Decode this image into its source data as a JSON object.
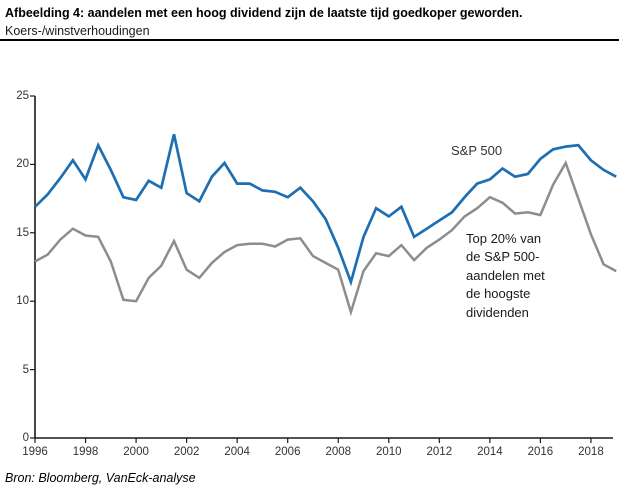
{
  "header": {
    "title": "Afbeelding 4: aandelen met een hoog dividend zijn de laatste tijd goedkoper geworden.",
    "subtitle": "Koers-/winstverhoudingen"
  },
  "footer": {
    "source": "Bron: Bloomberg, VanEck-analyse"
  },
  "colors": {
    "sp500_line": "#1e6fb2",
    "top20_line": "#8d8d8d",
    "axis": "#1a1a1a",
    "tick_label": "#333333"
  },
  "annotations": {
    "sp500_label": "S&P 500",
    "top20_label_lines": [
      "Top 20% van",
      "de S&P 500-",
      "aandelen met",
      "de hoogste",
      "dividenden"
    ]
  },
  "chart_data": {
    "type": "line",
    "title": "Koers-/winstverhoudingen",
    "xlabel": "",
    "ylabel": "",
    "grid": false,
    "legend_position": "inline-annotations",
    "xlim": [
      1996,
      2019
    ],
    "ylim": [
      0,
      25
    ],
    "y_ticks": [
      0,
      5,
      10,
      15,
      20,
      25
    ],
    "x_ticks": [
      1996,
      1998,
      2000,
      2002,
      2004,
      2006,
      2008,
      2010,
      2012,
      2014,
      2016,
      2018
    ],
    "x": [
      1996,
      1996.5,
      1997,
      1997.5,
      1998,
      1998.5,
      1999,
      1999.5,
      2000,
      2000.5,
      2001,
      2001.5,
      2002,
      2002.5,
      2003,
      2003.5,
      2004,
      2004.5,
      2005,
      2005.5,
      2006,
      2006.5,
      2007,
      2007.5,
      2008,
      2008.5,
      2009,
      2009.5,
      2010,
      2010.5,
      2011,
      2011.5,
      2012,
      2012.5,
      2013,
      2013.5,
      2014,
      2014.5,
      2015,
      2015.5,
      2016,
      2016.5,
      2017,
      2017.5,
      2018,
      2018.5,
      2019
    ],
    "series": [
      {
        "name": "S&P 500",
        "color": "#1e6fb2",
        "values": [
          16.9,
          17.8,
          19.0,
          20.3,
          18.9,
          21.4,
          19.6,
          17.6,
          17.4,
          18.8,
          18.3,
          22.2,
          17.9,
          17.3,
          19.1,
          20.1,
          18.6,
          18.6,
          18.1,
          18.0,
          17.6,
          18.3,
          17.3,
          16.0,
          13.9,
          11.4,
          14.7,
          16.8,
          16.2,
          16.9,
          14.7,
          15.3,
          15.9,
          16.5,
          17.6,
          18.6,
          18.9,
          19.7,
          19.1,
          19.3,
          20.4,
          21.1,
          21.3,
          21.4,
          20.3,
          19.6,
          19.1
        ]
      },
      {
        "name": "Top 20% van de S&P 500-aandelen met de hoogste dividenden",
        "color": "#8d8d8d",
        "values": [
          12.9,
          13.4,
          14.5,
          15.3,
          14.8,
          14.7,
          12.9,
          10.1,
          10.0,
          11.7,
          12.6,
          14.4,
          12.3,
          11.7,
          12.8,
          13.6,
          14.1,
          14.2,
          14.2,
          14.0,
          14.5,
          14.6,
          13.3,
          12.8,
          12.3,
          9.2,
          12.2,
          13.5,
          13.3,
          14.1,
          13.0,
          13.9,
          14.5,
          15.2,
          16.2,
          16.8,
          17.6,
          17.2,
          16.4,
          16.5,
          16.3,
          18.5,
          20.1,
          17.5,
          14.9,
          12.7,
          12.2
        ]
      }
    ]
  }
}
